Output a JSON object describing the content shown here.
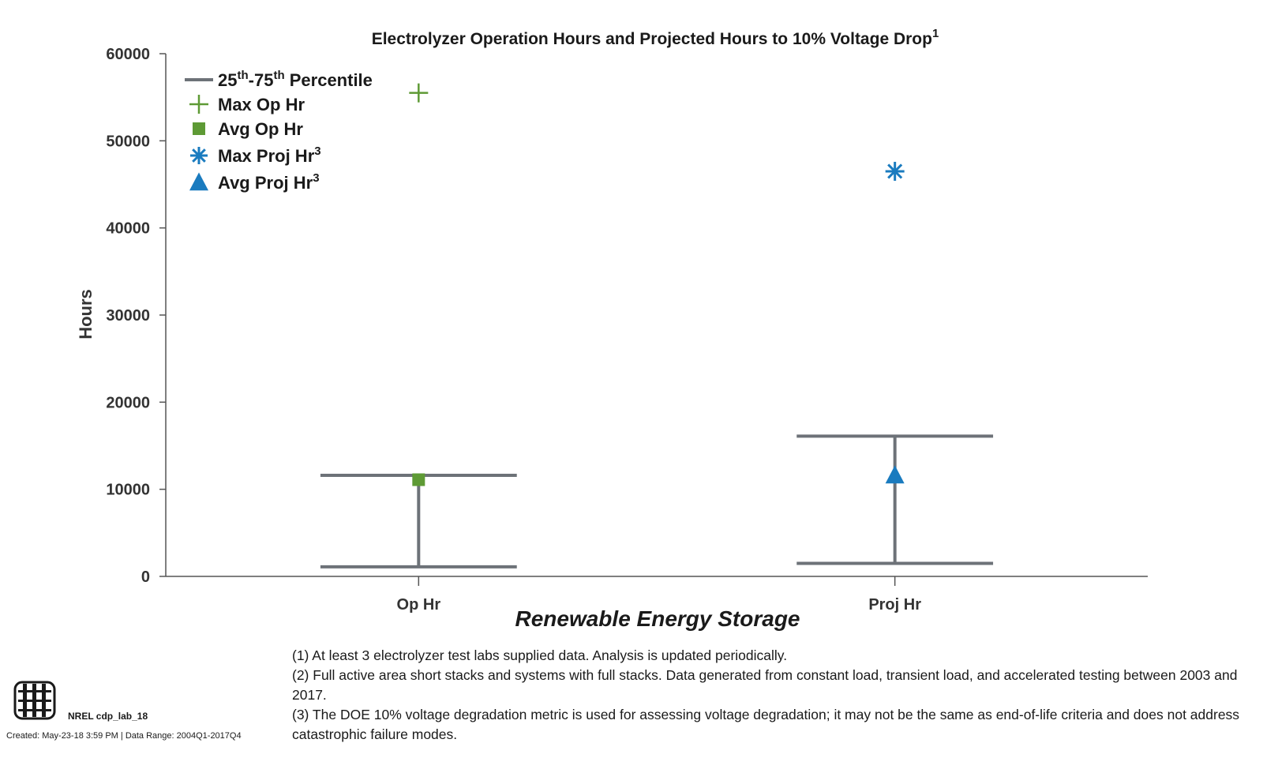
{
  "chart_data": {
    "type": "box-summary",
    "title": "Electrolyzer Operation Hours and Projected Hours to 10% Voltage Drop",
    "title_sup": "1",
    "ylabel": "Hours",
    "xlabel": "Renewable Energy Storage",
    "ylim": [
      0,
      60000
    ],
    "yticks": [
      "0",
      "10000",
      "20000",
      "30000",
      "40000",
      "50000",
      "60000"
    ],
    "grid": false,
    "legend_position": "top-left",
    "categories": [
      "Op Hr",
      "Proj Hr"
    ],
    "series": [
      {
        "name": "Op Hr",
        "p25": 1100,
        "p75": 11600,
        "max": 55500,
        "avg": 11100
      },
      {
        "name": "Proj Hr",
        "p25": 1500,
        "p75": 16100,
        "max": 46500,
        "avg": 11600
      }
    ],
    "legend": [
      {
        "label_parts": [
          "25",
          "th",
          "-75",
          "th",
          " Percentile"
        ],
        "marker": "line"
      },
      {
        "label": "Max Op Hr",
        "marker": "plus"
      },
      {
        "label": "Avg Op Hr",
        "marker": "square"
      },
      {
        "label": "Max Proj Hr",
        "sup": "3",
        "marker": "asterisk"
      },
      {
        "label": "Avg Proj Hr",
        "sup": "3",
        "marker": "triangle"
      }
    ],
    "colors": {
      "range": "#6d7278",
      "op": "#5e9a35",
      "proj": "#1a7bbf",
      "axis": "#555555"
    }
  },
  "footnotes": [
    "(1) At least 3 electrolyzer test labs supplied data. Analysis is updated periodically.",
    "(2) Full active area short stacks and systems with full stacks. Data generated from constant load, transient load, and accelerated testing between 2003 and 2017.",
    "(3) The DOE 10% voltage degradation metric is used for assessing voltage degradation; it may not be the same as end-of-life criteria and does not address catastrophic failure modes."
  ],
  "logo_label": "NREL cdp_lab_18",
  "created": "Created: May-23-18  3:59 PM | Data Range: 2004Q1-2017Q4"
}
